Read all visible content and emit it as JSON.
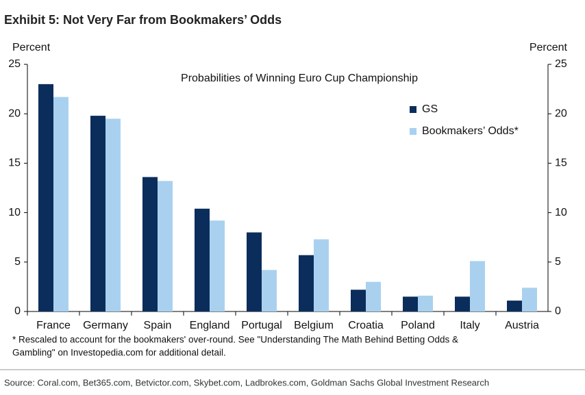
{
  "chart_data": {
    "type": "bar",
    "title": "Exhibit 5: Not Very Far from Bookmakers’ Odds",
    "subtitle": "Probabilities of Winning Euro Cup Championship",
    "y_label": "Percent",
    "y2_label": "Percent",
    "categories": [
      "France",
      "Germany",
      "Spain",
      "England",
      "Portugal",
      "Belgium",
      "Croatia",
      "Poland",
      "Italy",
      "Austria"
    ],
    "series": [
      {
        "name": "GS",
        "color": "#0b2d5b",
        "values": [
          23.0,
          19.8,
          13.6,
          10.4,
          8.0,
          5.7,
          2.2,
          1.5,
          1.5,
          1.1
        ]
      },
      {
        "name": "Bookmakers’ Odds*",
        "color": "#a9d1ef",
        "values": [
          21.7,
          19.5,
          13.2,
          9.2,
          4.2,
          7.3,
          3.0,
          1.6,
          5.1,
          2.4
        ]
      }
    ],
    "ylim": [
      0,
      25
    ],
    "yticks": [
      0,
      5,
      10,
      15,
      20,
      25
    ],
    "y2lim": [
      0,
      25
    ],
    "y2ticks": [
      0,
      5,
      10,
      15,
      20,
      25
    ],
    "notes": [
      "* Rescaled to account for the bookmakers' over-round. See \"Understanding The Math Behind Betting Odds &",
      "Gambling\" on Investopedia.com for additional detail."
    ],
    "source": "Source: Coral.com, Bet365.com, Betvictor.com, Skybet.com, Ladbrokes.com, Goldman Sachs Global Investment Research"
  }
}
